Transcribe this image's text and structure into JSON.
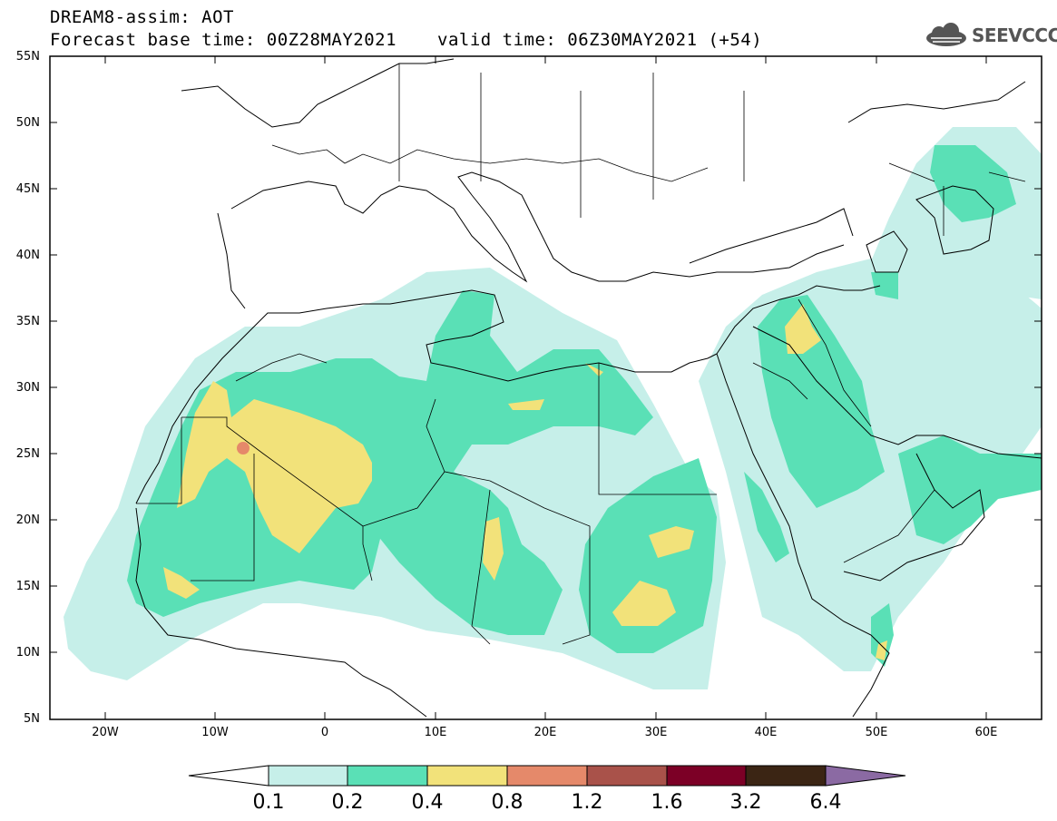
{
  "header": {
    "title_line1": "DREAM8-assim: AOT",
    "title_line2": "Forecast base time: 00Z28MAY2021",
    "title_valid": "valid time: 06Z30MAY2021 (+54)"
  },
  "logo": {
    "text": "SEEVCCC",
    "icon": "cloud-icon"
  },
  "map": {
    "lat_labels": [
      "55N",
      "50N",
      "45N",
      "40N",
      "35N",
      "30N",
      "25N",
      "20N",
      "15N",
      "10N",
      "5N"
    ],
    "lon_labels": [
      "20W",
      "10W",
      "0",
      "10E",
      "20E",
      "30E",
      "40E",
      "50E",
      "60E"
    ],
    "lon_range": [
      -25,
      65
    ],
    "lat_range": [
      5,
      55
    ]
  },
  "colorbar": {
    "labels": [
      "0.1",
      "0.2",
      "0.4",
      "0.8",
      "1.2",
      "1.6",
      "3.2",
      "6.4"
    ],
    "colors": [
      "#ffffff",
      "#c6efe9",
      "#5ae0b6",
      "#f2e27a",
      "#e5896a",
      "#a9524a",
      "#7c0026",
      "#3b2514",
      "#8b6aa3"
    ]
  }
}
